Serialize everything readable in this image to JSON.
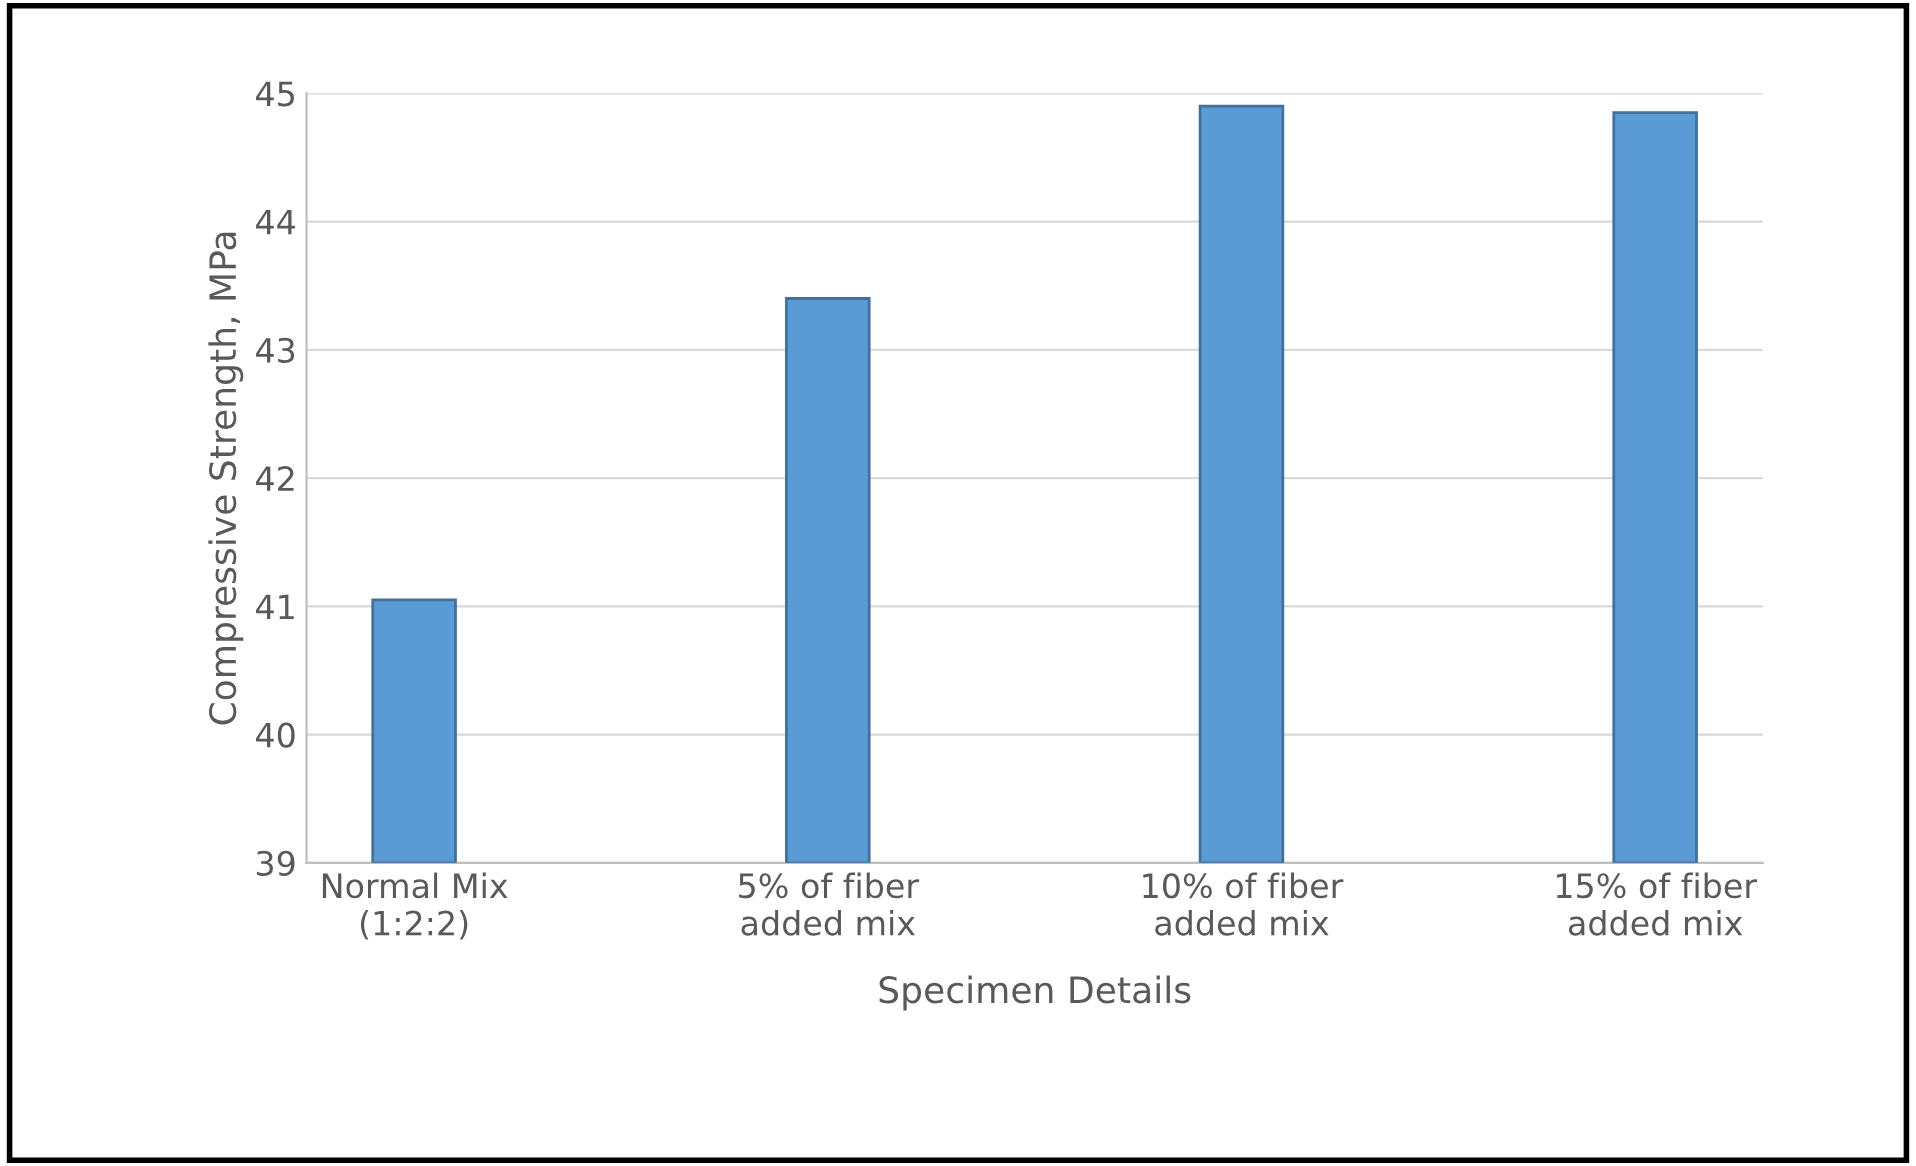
{
  "chart_data": {
    "type": "bar",
    "categories": [
      "Normal Mix\n(1:2:2)",
      "5% of fiber\nadded mix",
      "10% of fiber\nadded mix",
      "15% of fiber\nadded mix"
    ],
    "values": [
      41.05,
      43.4,
      44.9,
      44.85
    ],
    "color": "#5b9bd5",
    "xlabel": "Specimen Details",
    "ylabel": "Compressive Strength, MPa",
    "ylim": [
      39,
      45
    ],
    "yticks": [
      39,
      40,
      41,
      42,
      43,
      44,
      45
    ],
    "grid": "y"
  }
}
